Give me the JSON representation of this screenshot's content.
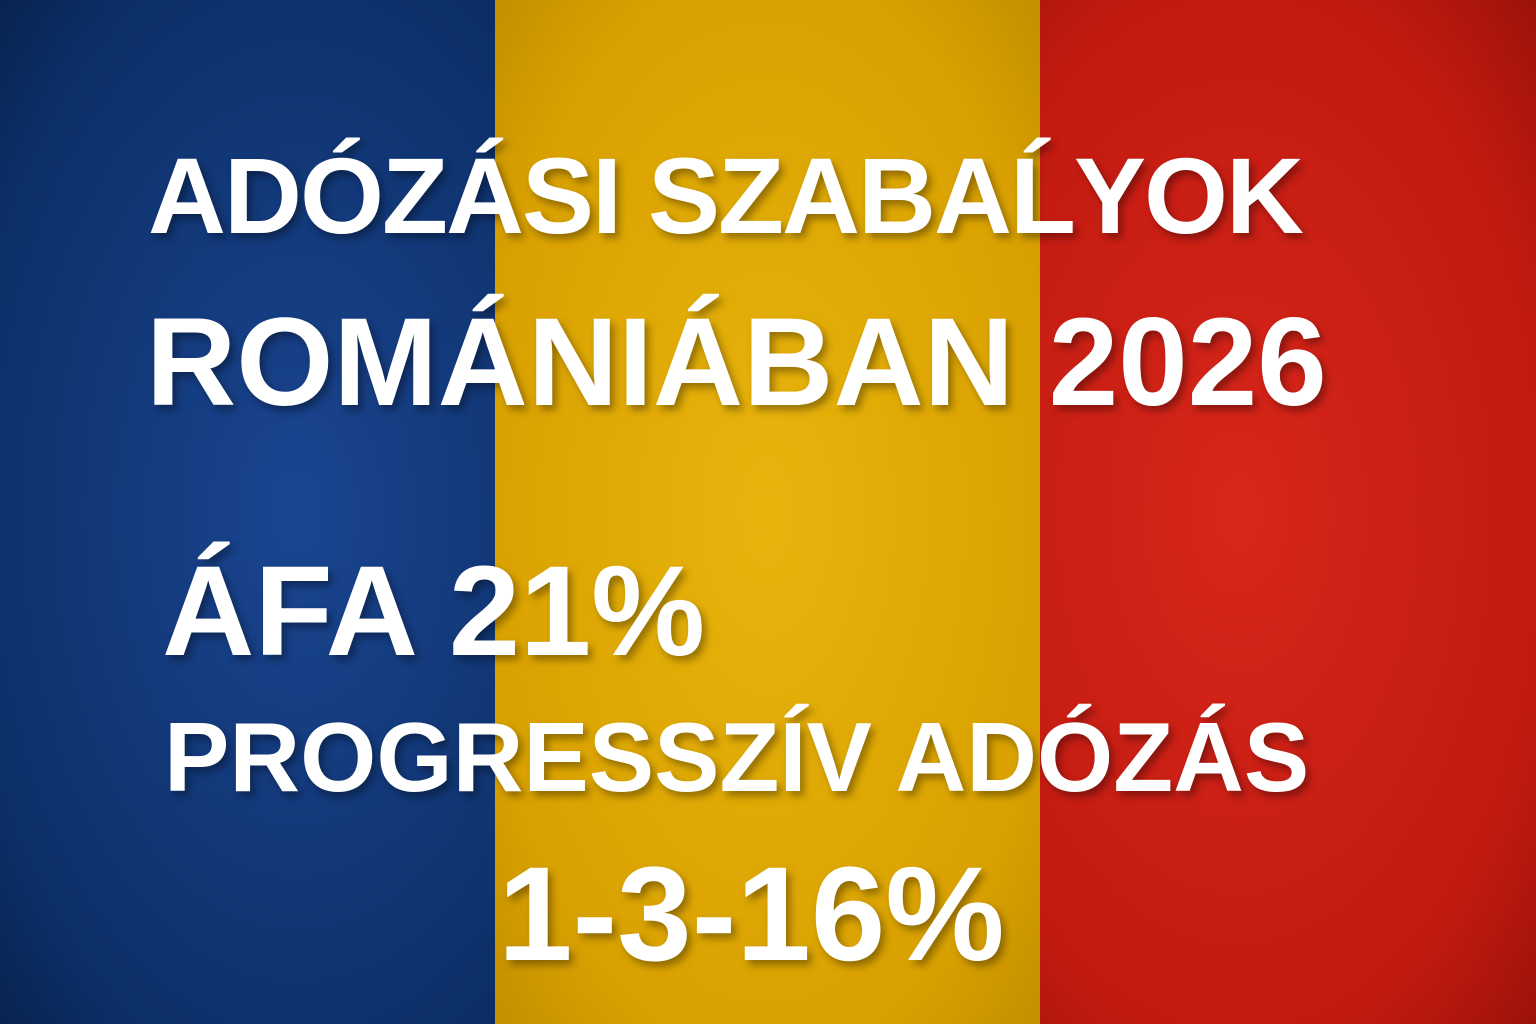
{
  "colors": {
    "blue": "#0c2f68",
    "yellow": "#d9a100",
    "red": "#c01a10",
    "text": "#ffffff"
  },
  "poster": {
    "title_line1": "ADÓZÁSI SZABAĹYOK",
    "title_line2": "ROMÁNIÁBAN 2026",
    "vat_line": "ÁFA 21%",
    "progressive_line": "PROGRESSZÍV ADÓZÁS",
    "rates_line": "1-3-16%"
  }
}
